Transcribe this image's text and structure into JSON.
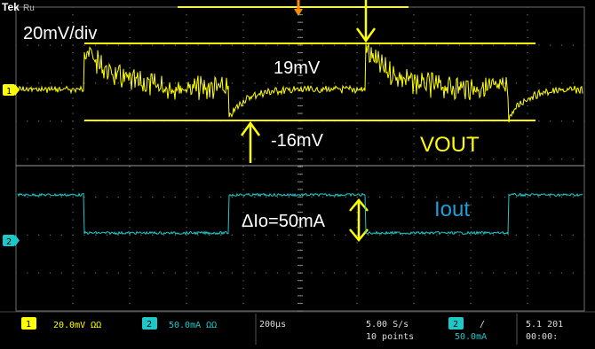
{
  "brand": "Tek",
  "brand_suffix": "Ru",
  "scale_label": "20mV/div",
  "annotations": {
    "overshoot": "19mV",
    "undershoot": "-16mV",
    "vout_label": "VOUT",
    "iout_label": "Iout",
    "delta_label": "ΔIo=50mA"
  },
  "channel_markers": {
    "ch1": "1",
    "ch2": "2"
  },
  "status_bar": {
    "ch1_badge": "1",
    "ch1_text": "20.0mV  ΩΩ",
    "ch2_badge": "2",
    "ch2_text": "50.0mA  ΩΩ",
    "timebase_text": "200μs",
    "sample_rate": "5.00 S/s",
    "record_length": "10 points",
    "trigger_badge": "2",
    "trigger_slope": "/",
    "trigger_level": "50.0mA",
    "corner_line1": "5.1  201",
    "corner_line2": "00:00:"
  },
  "colors": {
    "ch1": "#ffff00",
    "ch2": "#1ec8c8",
    "iout_label": "#1aa0d8",
    "annotation_line": "#ffff00",
    "trigger_marker": "#ff8a00",
    "grid": "#7a7a7a",
    "status_bar_bg": "#000000"
  }
}
